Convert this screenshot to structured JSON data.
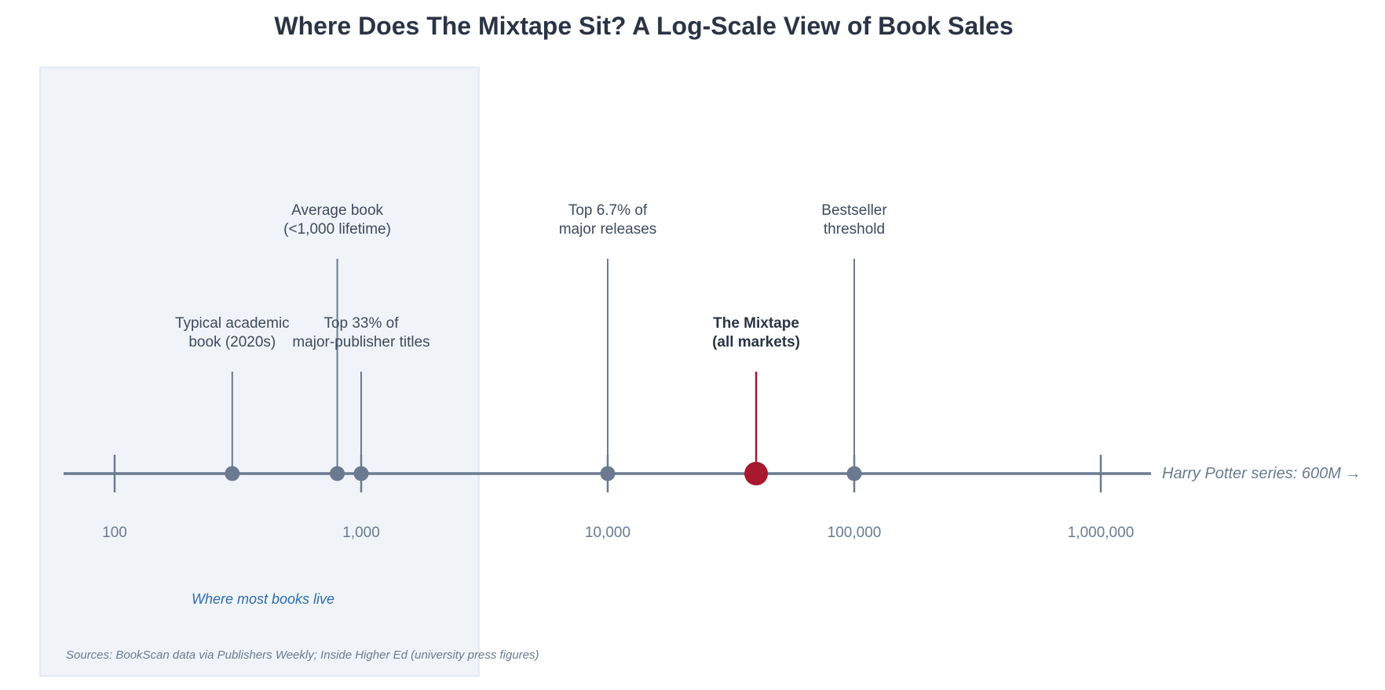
{
  "chart_data": {
    "type": "scatter",
    "title": "Where Does The Mixtape Sit? A Log-Scale View of Book Sales",
    "xlabel": "",
    "ylabel": "",
    "x_scale": "log",
    "xlim": [
      63,
      1600000
    ],
    "x_ticks": [
      100,
      1000,
      10000,
      100000,
      1000000
    ],
    "x_tick_labels": [
      "100",
      "1,000",
      "10,000",
      "100,000",
      "1,000,000"
    ],
    "grid": false,
    "shaded_region": {
      "x_range": [
        50,
        3000
      ],
      "label": "Where most books live"
    },
    "points": [
      {
        "label": "Typical academic book (2020s)",
        "lines": [
          "Typical academic",
          "book (2020s)"
        ],
        "x": 300,
        "tier": "low",
        "highlight": false
      },
      {
        "label": "Average book (<1,000 lifetime)",
        "lines": [
          "Average book",
          "(<1,000 lifetime)"
        ],
        "x": 800,
        "tier": "high",
        "highlight": false
      },
      {
        "label": "Top 33% of major-publisher titles",
        "lines": [
          "Top 33% of",
          "major-publisher titles"
        ],
        "x": 1000,
        "tier": "low",
        "highlight": false
      },
      {
        "label": "Top 6.7% of major releases",
        "lines": [
          "Top 6.7% of",
          "major releases"
        ],
        "x": 10000,
        "tier": "high",
        "highlight": false
      },
      {
        "label": "The Mixtape (all markets)",
        "lines": [
          "The Mixtape",
          "(all markets)"
        ],
        "x": 40000,
        "tier": "low",
        "highlight": true
      },
      {
        "label": "Bestseller threshold",
        "lines": [
          "Bestseller",
          "threshold"
        ],
        "x": 100000,
        "tier": "high",
        "highlight": false
      }
    ],
    "offscale_annotation": "Harry Potter series: 600M →",
    "source_note": "Sources: BookScan data via Publishers Weekly; Inside Higher Ed (university press figures)",
    "colors": {
      "title": "#2b3445",
      "axis": "#6b7a90",
      "marker": "#6b7a90",
      "highlight": "#a8182e",
      "label_text": "#3f4a5c",
      "highlight_text": "#2b3445",
      "tick_text": "#6b7a90",
      "shade_fill": "#f0f4f9",
      "shade_stroke": "#e1e9f3",
      "region_label": "#2e6db0",
      "note": "#6b7a90"
    }
  }
}
